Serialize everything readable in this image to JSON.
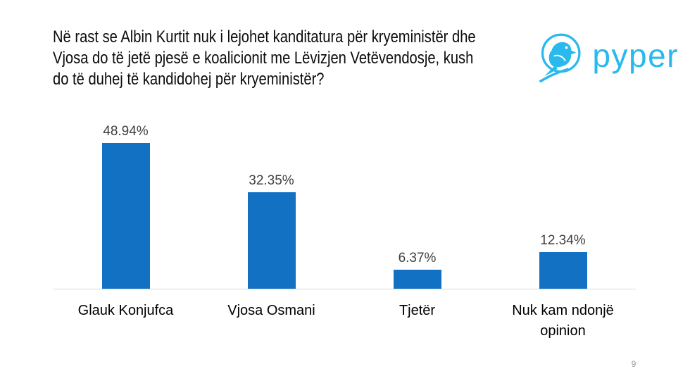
{
  "header": {
    "question_lines": [
      "Në rast se Albin Kurtit nuk i lejohet kanditatura për kryeministër dhe",
      "Vjosa do të jetë pjesë e koalicionit me Lëvizjen Vetëvendosje, kush",
      "do të duhej të kandidohej për kryeministër?"
    ],
    "logo_text": "pyper"
  },
  "footer": {
    "page_number": "9"
  },
  "chart_data": {
    "type": "bar",
    "title": "Në rast se Albin Kurtit nuk i lejohet kanditatura për kryeministër dhe Vjosa do të jetë pjesë e koalicionit me Lëvizjen Vetëvendosje, kush do të duhej të kandidohej për kryeministër?",
    "categories": [
      "Glauk Konjufca",
      "Vjosa Osmani",
      "Tjetër",
      "Nuk kam ndonjë opinion"
    ],
    "values": [
      48.94,
      32.35,
      6.37,
      12.34
    ],
    "value_labels": [
      "48.94%",
      "32.35%",
      "6.37%",
      "12.34%"
    ],
    "xlabel": "",
    "ylabel": "",
    "ylim": [
      0,
      50
    ],
    "grid": false,
    "legend": false,
    "bar_color": "#1271C3",
    "axis_line_color": "#D9D9D9",
    "value_label_color": "#3F3F3F",
    "category_label_color": "#000000"
  },
  "colors": {
    "brand_cyan": "#29B9EC",
    "page_number_gray": "#9B9B9B"
  }
}
